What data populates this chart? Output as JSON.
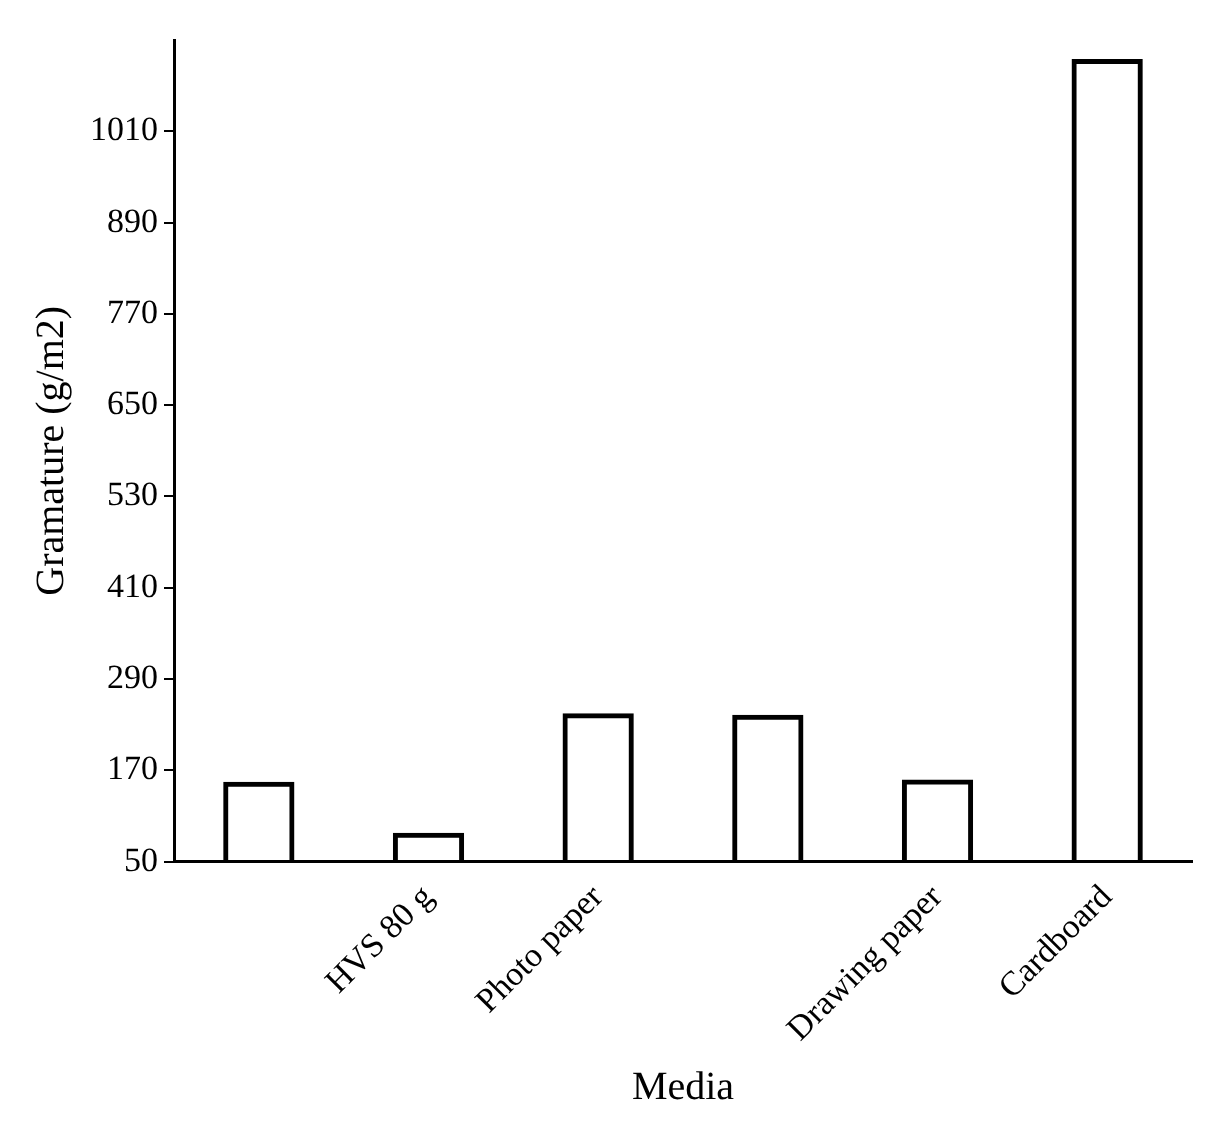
{
  "chart_data": {
    "type": "bar",
    "xlabel": "Media",
    "ylabel": "Gramature (g/m2)",
    "categories": [
      null,
      "HVS 80 g",
      "Photo paper",
      null,
      "Drawing paper",
      "Cardboard"
    ],
    "values": [
      155,
      88,
      245,
      243,
      158,
      1105
    ],
    "color": "#000000",
    "ylim": [
      50,
      1130
    ],
    "yticks": [
      50,
      170,
      290,
      410,
      530,
      650,
      770,
      890,
      1010
    ],
    "grid": false
  }
}
